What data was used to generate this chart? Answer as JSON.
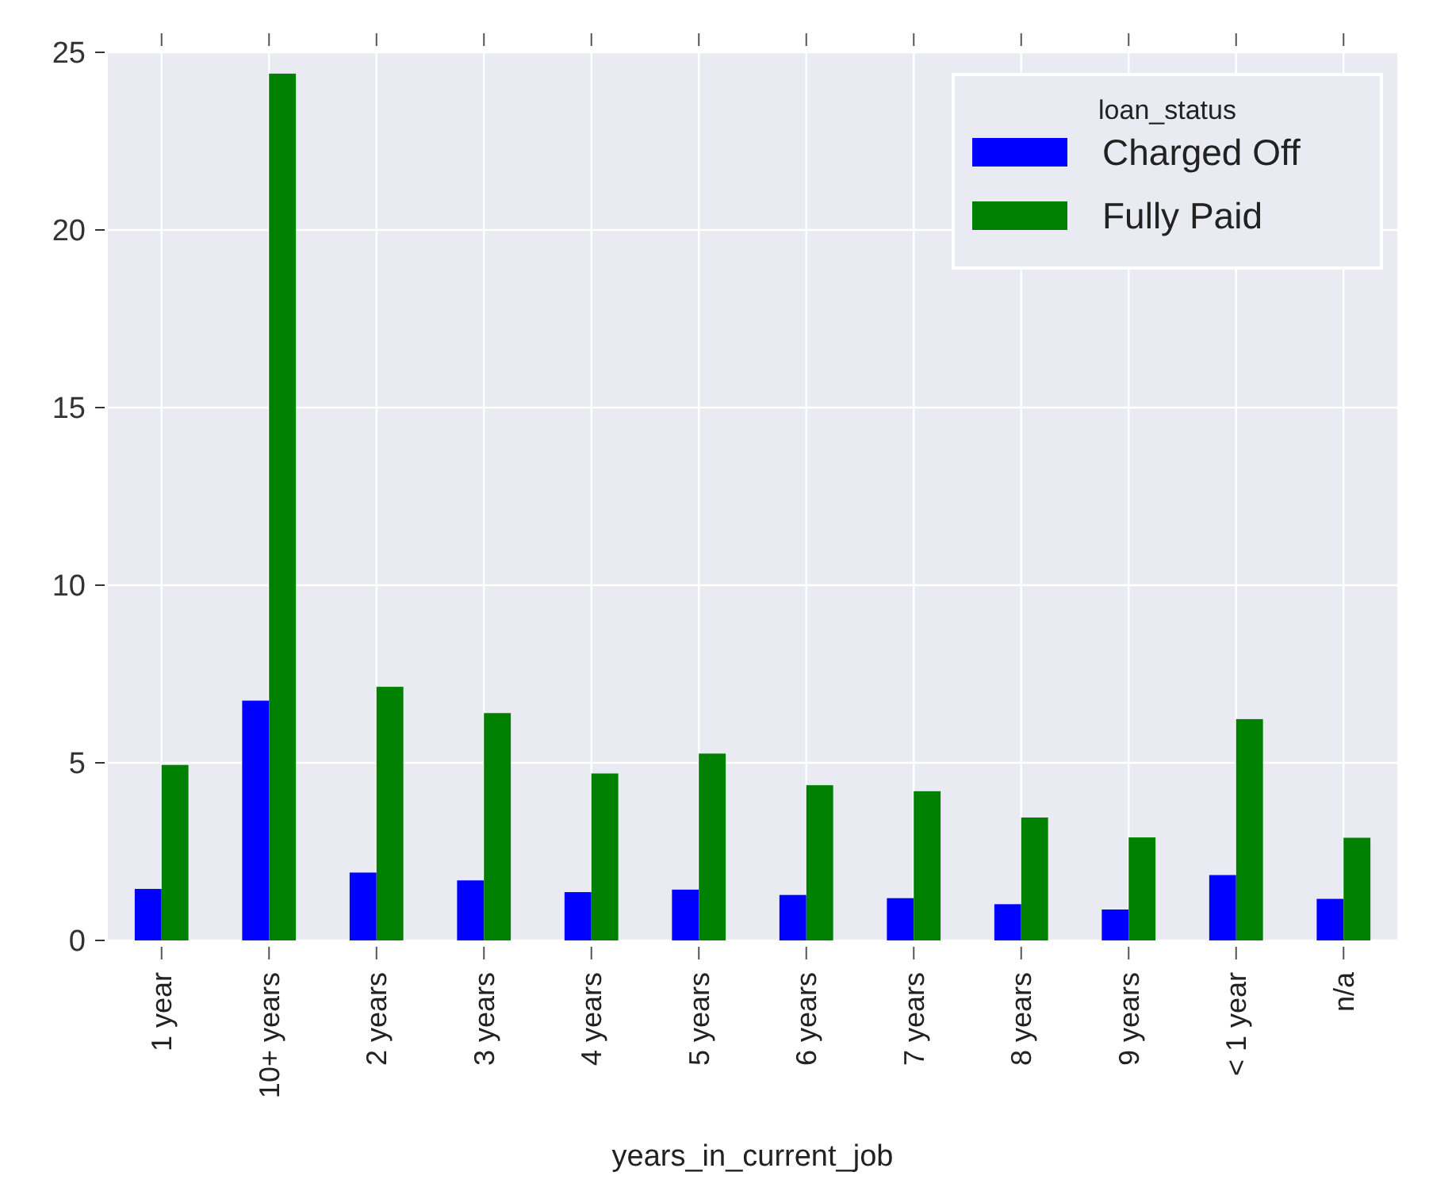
{
  "chart_data": {
    "type": "bar",
    "xlabel": "years_in_current_job",
    "legend_title": "loan_status",
    "categories": [
      "1 year",
      "10+ years",
      "2 years",
      "3 years",
      "4 years",
      "5 years",
      "6 years",
      "7 years",
      "8 years",
      "9 years",
      "< 1 year",
      "n/a"
    ],
    "series": [
      {
        "name": "Charged Off",
        "color": "#0000ff",
        "values": [
          1.45,
          6.75,
          1.91,
          1.69,
          1.36,
          1.43,
          1.28,
          1.19,
          1.02,
          0.87,
          1.84,
          1.17
        ]
      },
      {
        "name": "Fully Paid",
        "color": "#008000",
        "values": [
          4.94,
          24.4,
          7.14,
          6.4,
          4.7,
          5.26,
          4.37,
          4.2,
          3.46,
          2.9,
          6.23,
          2.89
        ]
      }
    ],
    "ylim": [
      0,
      25
    ],
    "yticks": [
      0,
      5,
      10,
      15,
      20,
      25
    ],
    "grid": true,
    "legend": "top right"
  }
}
